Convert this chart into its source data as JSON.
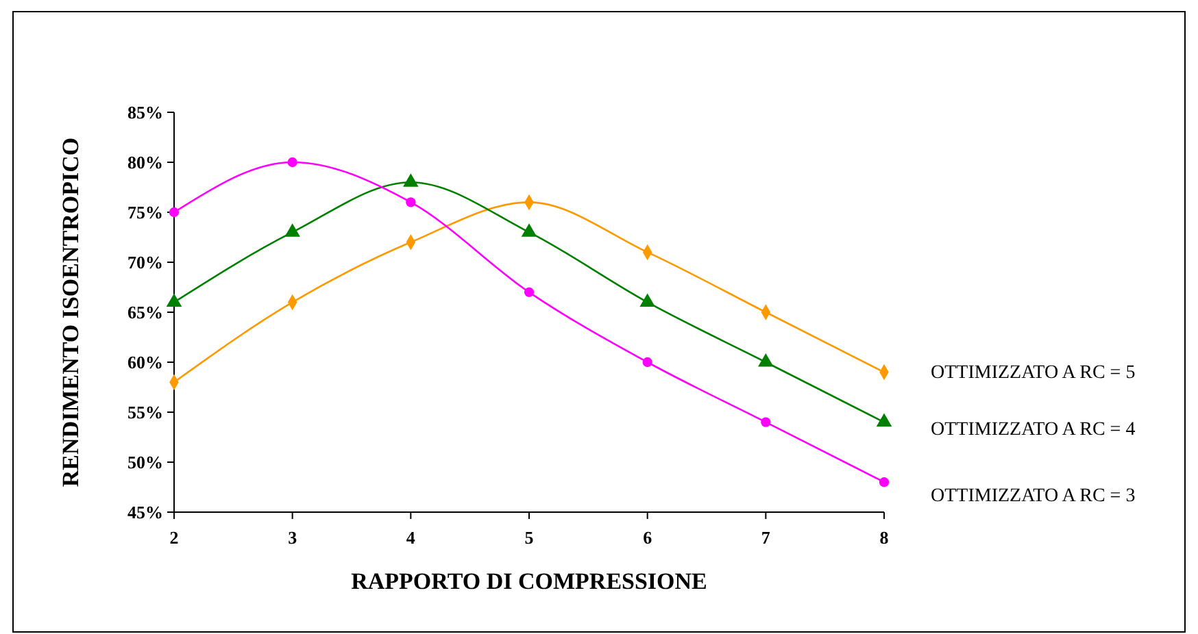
{
  "chart_data": {
    "type": "line",
    "xlabel": "RAPPORTO DI COMPRESSIONE",
    "ylabel": "RENDIMENTO ISOENTROPICO",
    "x": [
      2,
      3,
      4,
      5,
      6,
      7,
      8
    ],
    "xlim": [
      2,
      8
    ],
    "xticks": [
      2,
      3,
      4,
      5,
      6,
      7,
      8
    ],
    "ylim": [
      45,
      85
    ],
    "yticks": [
      {
        "value": 45,
        "label": "45%"
      },
      {
        "value": 50,
        "label": "50%"
      },
      {
        "value": 55,
        "label": "55%"
      },
      {
        "value": 60,
        "label": "60%"
      },
      {
        "value": 65,
        "label": "65%"
      },
      {
        "value": 70,
        "label": "70%"
      },
      {
        "value": 75,
        "label": "75%"
      },
      {
        "value": 80,
        "label": "80%"
      },
      {
        "value": 85,
        "label": "85%"
      }
    ],
    "grid": false,
    "line_style": "solid",
    "series": [
      {
        "name": "OTTIMIZZATO A RC = 5",
        "color": "#ff9900",
        "marker": "diamond",
        "values": [
          58,
          66,
          72,
          76,
          71,
          65,
          59
        ]
      },
      {
        "name": "OTTIMIZZATO A RC = 4",
        "color": "#008000",
        "marker": "triangle",
        "values": [
          66,
          73,
          78,
          73,
          66,
          60,
          54
        ]
      },
      {
        "name": "OTTIMIZZATO A RC = 3",
        "color": "#ff00ff",
        "marker": "circle",
        "values": [
          75,
          80,
          76,
          67,
          60,
          54,
          48
        ]
      }
    ]
  }
}
